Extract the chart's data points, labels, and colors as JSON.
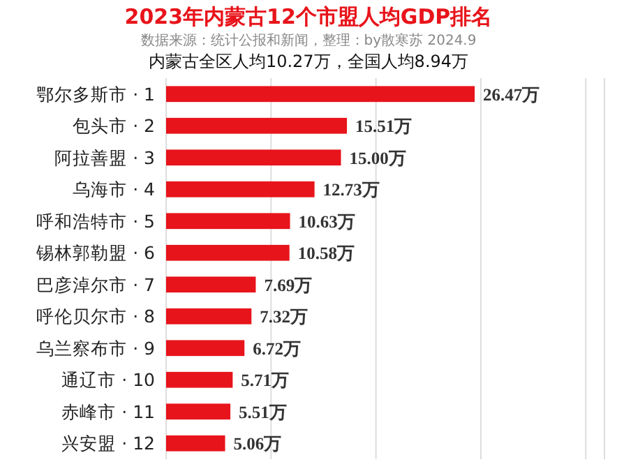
{
  "chart_data": {
    "type": "bar",
    "orientation": "horizontal",
    "title": "2023年内蒙古12个市盟人均GDP排名",
    "subtitle": "数据来源：统计公报和新闻，整理：by散寒苏 2024.9",
    "annotations": [
      "内蒙古全区人均10.27万，全国人均8.94万"
    ],
    "categories": [
      "鄂尔多斯市 · 1",
      "包头市 · 2",
      "阿拉善盟 · 3",
      "乌海市 · 4",
      "呼和浩特市 · 5",
      "锡林郭勒盟 · 6",
      "巴彦淖尔市 · 7",
      "呼伦贝尔市 · 8",
      "乌兰察布市 · 9",
      "通辽市 · 10",
      "赤峰市 · 11",
      "兴安盟 · 12"
    ],
    "values": [
      26.47,
      15.51,
      15.0,
      12.73,
      10.63,
      10.58,
      7.69,
      7.32,
      6.72,
      5.71,
      5.51,
      5.06
    ],
    "value_labels": [
      "26.47万",
      "15.51万",
      "15.00万",
      "12.73万",
      "10.63万",
      "10.58万",
      "7.69万",
      "7.32万",
      "6.72万",
      "5.71万",
      "5.51万",
      "5.06万"
    ],
    "color": "#e8141b",
    "grid": "x",
    "xlim": [
      0,
      37.6
    ],
    "xticks": [
      {
        "value": 0,
        "label": null
      },
      {
        "value": 9,
        "label": null
      },
      {
        "value": 18,
        "label": null
      },
      {
        "value": 27,
        "label": null
      },
      {
        "value": 36,
        "label": null
      }
    ]
  }
}
